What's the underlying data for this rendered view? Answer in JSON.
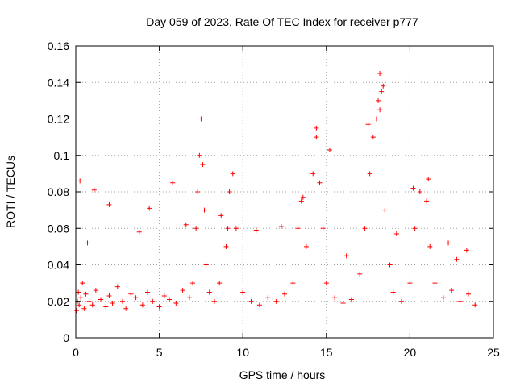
{
  "chart_data": {
    "type": "scatter",
    "title": "Day 059 of 2023, Rate Of TEC Index for receiver p777",
    "xlabel": "GPS time / hours",
    "ylabel": "ROTI / TECUs",
    "xlim": [
      0,
      25
    ],
    "ylim": [
      0,
      0.16
    ],
    "xticks": [
      0,
      5,
      10,
      15,
      20,
      25
    ],
    "xtick_labels": [
      "0",
      "5",
      "10",
      "15",
      "20",
      "25"
    ],
    "yticks": [
      0,
      0.02,
      0.04,
      0.06,
      0.08,
      0.1,
      0.12,
      0.14,
      0.16
    ],
    "ytick_labels": [
      "0",
      "0.02",
      "0.04",
      "0.06",
      "0.08",
      "0.1",
      "0.12",
      "0.14",
      "0.16"
    ],
    "grid": true,
    "marker": "+",
    "color": "#ff0000",
    "series": [
      {
        "name": "ROTI",
        "x": [
          0.05,
          0.1,
          0.15,
          0.2,
          0.3,
          0.4,
          0.5,
          0.6,
          0.8,
          1.0,
          1.2,
          1.5,
          1.8,
          2.0,
          2.2,
          2.5,
          2.8,
          3.0,
          3.3,
          3.6,
          4.0,
          4.3,
          4.6,
          5.0,
          5.3,
          5.6,
          6.0,
          6.4,
          6.8,
          7.0,
          7.2,
          7.3,
          7.4,
          7.5,
          7.6,
          7.7,
          7.8,
          8.0,
          8.3,
          8.6,
          9.0,
          9.2,
          9.4,
          9.6,
          10.0,
          10.5,
          11.0,
          11.5,
          12.0,
          12.5,
          13.0,
          13.3,
          13.5,
          13.8,
          14.2,
          14.4,
          14.6,
          14.8,
          15.0,
          15.5,
          16.0,
          16.5,
          17.0,
          17.3,
          17.6,
          17.8,
          18.0,
          18.1,
          18.2,
          18.3,
          18.5,
          18.8,
          19.0,
          19.5,
          20.0,
          20.3,
          20.6,
          21.0,
          21.2,
          21.5,
          22.0,
          22.5,
          23.0,
          23.5,
          23.9,
          0.25,
          1.1,
          2.0,
          4.4,
          5.8,
          8.7,
          9.1,
          12.3,
          13.6,
          14.4,
          15.2,
          17.5,
          18.2,
          18.4,
          20.2,
          21.1,
          22.3,
          23.4,
          0.7,
          3.8,
          6.6,
          10.8,
          16.2,
          19.2,
          22.8
        ],
        "y": [
          0.015,
          0.02,
          0.025,
          0.018,
          0.022,
          0.03,
          0.016,
          0.024,
          0.02,
          0.018,
          0.026,
          0.021,
          0.017,
          0.023,
          0.019,
          0.028,
          0.02,
          0.016,
          0.024,
          0.022,
          0.018,
          0.025,
          0.02,
          0.017,
          0.023,
          0.021,
          0.019,
          0.026,
          0.022,
          0.03,
          0.06,
          0.08,
          0.1,
          0.12,
          0.095,
          0.07,
          0.04,
          0.025,
          0.02,
          0.03,
          0.05,
          0.08,
          0.09,
          0.06,
          0.025,
          0.02,
          0.018,
          0.022,
          0.02,
          0.024,
          0.03,
          0.06,
          0.075,
          0.05,
          0.09,
          0.11,
          0.085,
          0.06,
          0.03,
          0.022,
          0.019,
          0.021,
          0.035,
          0.06,
          0.09,
          0.11,
          0.12,
          0.13,
          0.145,
          0.135,
          0.07,
          0.04,
          0.025,
          0.02,
          0.03,
          0.06,
          0.08,
          0.075,
          0.05,
          0.03,
          0.022,
          0.026,
          0.02,
          0.024,
          0.018,
          0.086,
          0.081,
          0.073,
          0.071,
          0.085,
          0.067,
          0.06,
          0.061,
          0.077,
          0.115,
          0.103,
          0.117,
          0.125,
          0.138,
          0.082,
          0.087,
          0.052,
          0.048,
          0.052,
          0.058,
          0.062,
          0.059,
          0.045,
          0.057,
          0.043
        ]
      }
    ]
  }
}
